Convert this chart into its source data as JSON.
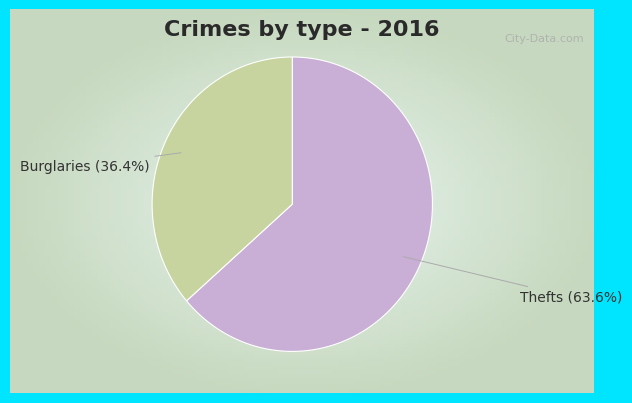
{
  "title": "Crimes by type - 2016",
  "slices": [
    63.6,
    36.4
  ],
  "labels": [
    "Thefts (63.6%)",
    "Burglaries (36.4%)"
  ],
  "colors": [
    "#c9aed6",
    "#c8d4a0"
  ],
  "background_cyan": "#00e5ff",
  "background_grad_center": "#e8f5f0",
  "background_grad_edge": "#c8ede0",
  "title_fontsize": 16,
  "label_fontsize": 10,
  "startangle": 90,
  "watermark": "City-Data.com",
  "title_color": "#2a2a2a"
}
